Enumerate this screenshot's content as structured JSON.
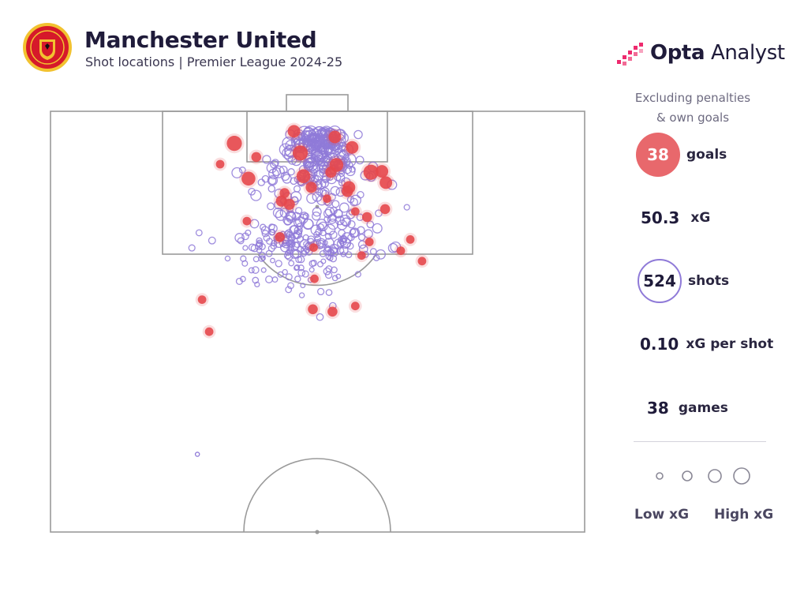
{
  "header": {
    "title": "Manchester United",
    "subtitle": "Shot locations | Premier League 2024-25"
  },
  "brand": {
    "bold": "Opta",
    "light": " Analyst"
  },
  "colors": {
    "goal": "#e5484d",
    "shot": "#8f7ad8",
    "text": "#1f1b3a",
    "pitch_line": "#9a9a9a"
  },
  "icons": {
    "crest": "manchester-united-crest",
    "brand": "opta-analyst-logo"
  },
  "stats": {
    "note_line1": "Excluding penalties",
    "note_line2": "& own goals",
    "goals_value": "38",
    "goals_label": "goals",
    "xg_value": "50.3",
    "xg_label": "xG",
    "shots_value": "524",
    "shots_label": "shots",
    "xg_per_shot_value": "0.10",
    "xg_per_shot_label": "xG per shot",
    "games_value": "38",
    "games_label": "games"
  },
  "legend": {
    "low": "Low xG",
    "high": "High xG"
  },
  "chart_data": {
    "type": "scatter",
    "title": "Manchester United",
    "subtitle": "Shot locations | Premier League 2024-25",
    "description": "Half-pitch shot map, goal at top. Coordinates: x = metres across pitch from left touchline (0-68), y = metres from goal line (0-52.5). r = relative xG size (1 low - 6 high).",
    "totals": {
      "goals": 38,
      "xG": 50.3,
      "shots": 524,
      "xG_per_shot": 0.1,
      "games": 38
    },
    "series": [
      {
        "name": "goals",
        "points": [
          [
            31.0,
            2.5,
            3.5
          ],
          [
            23.4,
            4.0,
            4.5
          ],
          [
            36.2,
            3.2,
            3.5
          ],
          [
            38.4,
            4.5,
            3.5
          ],
          [
            26.2,
            5.7,
            2.5
          ],
          [
            31.8,
            5.2,
            4.5
          ],
          [
            36.4,
            6.7,
            4.0
          ],
          [
            40.8,
            7.6,
            4.5
          ],
          [
            42.2,
            7.5,
            3.5
          ],
          [
            21.6,
            6.6,
            2.0
          ],
          [
            25.2,
            8.4,
            4.0
          ],
          [
            32.2,
            8.1,
            4.0
          ],
          [
            35.7,
            7.6,
            3.0
          ],
          [
            42.7,
            8.9,
            3.5
          ],
          [
            38.0,
            9.5,
            3.5
          ],
          [
            29.8,
            10.2,
            2.5
          ],
          [
            33.2,
            9.5,
            3.0
          ],
          [
            37.8,
            10.0,
            3.0
          ],
          [
            29.4,
            11.2,
            3.0
          ],
          [
            35.2,
            10.9,
            2.0
          ],
          [
            30.4,
            11.6,
            3.0
          ],
          [
            25.0,
            13.7,
            2.0
          ],
          [
            42.6,
            12.2,
            2.5
          ],
          [
            40.3,
            13.2,
            2.5
          ],
          [
            29.2,
            15.7,
            2.5
          ],
          [
            38.8,
            12.5,
            2.0
          ],
          [
            40.6,
            16.3,
            2.0
          ],
          [
            44.6,
            17.4,
            2.0
          ],
          [
            45.8,
            16.0,
            2.0
          ],
          [
            33.5,
            17.0,
            2.0
          ],
          [
            39.6,
            18.0,
            2.0
          ],
          [
            47.3,
            18.7,
            2.0
          ],
          [
            33.6,
            20.9,
            2.0
          ],
          [
            19.3,
            23.5,
            2.0
          ],
          [
            33.4,
            24.7,
            2.5
          ],
          [
            35.9,
            25.0,
            2.5
          ],
          [
            38.8,
            24.3,
            2.0
          ],
          [
            20.2,
            27.5,
            2.0
          ]
        ]
      },
      {
        "name": "shots",
        "count": 524
      }
    ],
    "legend": [
      "Low xG",
      "High xG"
    ],
    "xlim": [
      0,
      68
    ],
    "ylim": [
      0,
      52.5
    ]
  }
}
